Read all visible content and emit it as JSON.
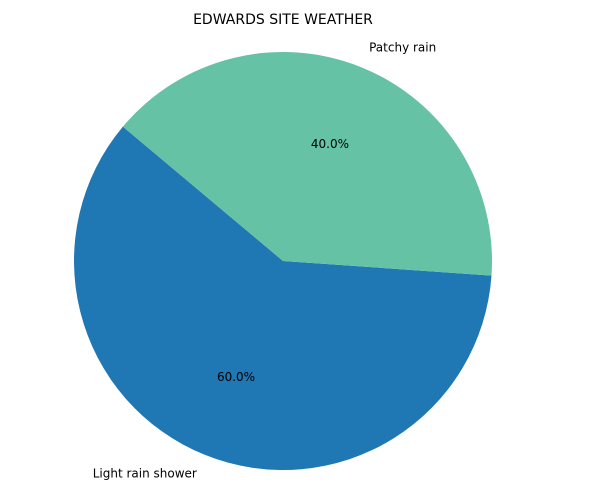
{
  "chart_data": {
    "type": "pie",
    "title": "EDWARDS SITE WEATHER",
    "start_angle_deg": 140,
    "direction": "counterclockwise",
    "slices": [
      {
        "label": "Light rain shower",
        "value": 60.0,
        "pct_label": "60.0%",
        "color": "#1f77b4"
      },
      {
        "label": "Patchy rain",
        "value": 40.0,
        "pct_label": "40.0%",
        "color": "#66c2a5"
      }
    ],
    "legend": "none"
  }
}
